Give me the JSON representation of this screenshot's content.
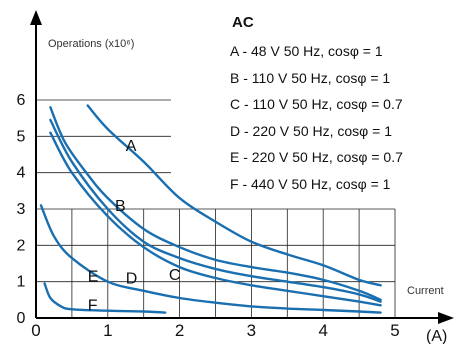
{
  "chart_data": {
    "type": "line",
    "title": "AC",
    "ylabel": "Operations (x10⁶)",
    "xlabel": "Current",
    "xunit": "(A)",
    "xlim": [
      0,
      5
    ],
    "ylim": [
      0,
      6.5
    ],
    "x_ticks": [
      "0",
      "1",
      "2",
      "3",
      "4",
      "5"
    ],
    "y_ticks": [
      "0",
      "1",
      "2",
      "3",
      "4",
      "5",
      "6"
    ],
    "grid": true,
    "legend_position": "top-right",
    "legend": [
      "A - 48 V 50 Hz, cosφ = 1",
      "B - 110 V 50 Hz, cosφ = 1",
      "C - 110 V 50 Hz, cosφ = 0.7",
      "D - 220 V 50 Hz, cosφ = 1",
      "E - 220 V 50 Hz, cosφ = 0.7",
      "F - 440 V 50 Hz, cosφ = 1"
    ],
    "series": [
      {
        "name": "A",
        "label_at": [
          1.25,
          4.6
        ],
        "points": [
          [
            0.72,
            5.85
          ],
          [
            1.0,
            5.2
          ],
          [
            1.5,
            4.3
          ],
          [
            2.0,
            3.3
          ],
          [
            2.5,
            2.65
          ],
          [
            3.0,
            2.1
          ],
          [
            3.5,
            1.75
          ],
          [
            4.0,
            1.45
          ],
          [
            4.5,
            1.05
          ],
          [
            4.8,
            0.9
          ]
        ]
      },
      {
        "name": "B",
        "label_at": [
          1.1,
          2.95
        ],
        "points": [
          [
            0.2,
            5.8
          ],
          [
            0.4,
            4.85
          ],
          [
            0.7,
            4.0
          ],
          [
            1.0,
            3.3
          ],
          [
            1.5,
            2.45
          ],
          [
            2.0,
            1.95
          ],
          [
            2.5,
            1.6
          ],
          [
            3.0,
            1.4
          ],
          [
            3.5,
            1.25
          ],
          [
            4.0,
            1.05
          ],
          [
            4.5,
            0.75
          ],
          [
            4.8,
            0.5
          ]
        ]
      },
      {
        "name": "C",
        "label_at": [
          1.85,
          1.05
        ],
        "points": [
          [
            0.2,
            5.45
          ],
          [
            0.5,
            4.3
          ],
          [
            1.0,
            3.0
          ],
          [
            1.5,
            2.1
          ],
          [
            2.0,
            1.65
          ],
          [
            2.5,
            1.35
          ],
          [
            3.0,
            1.15
          ],
          [
            3.5,
            1.0
          ],
          [
            4.0,
            0.85
          ],
          [
            4.5,
            0.65
          ],
          [
            4.8,
            0.45
          ]
        ]
      },
      {
        "name": "D",
        "label_at": [
          1.25,
          0.95
        ],
        "points": [
          [
            0.2,
            5.1
          ],
          [
            0.5,
            4.0
          ],
          [
            1.0,
            2.8
          ],
          [
            1.5,
            1.95
          ],
          [
            2.0,
            1.4
          ],
          [
            2.5,
            1.1
          ],
          [
            3.0,
            0.9
          ],
          [
            3.5,
            0.75
          ],
          [
            4.0,
            0.6
          ],
          [
            4.5,
            0.45
          ],
          [
            4.8,
            0.35
          ]
        ]
      },
      {
        "name": "E",
        "label_at": [
          0.72,
          1.0
        ],
        "points": [
          [
            0.07,
            3.1
          ],
          [
            0.25,
            2.25
          ],
          [
            0.5,
            1.65
          ],
          [
            1.0,
            1.0
          ],
          [
            1.5,
            0.75
          ],
          [
            2.0,
            0.55
          ],
          [
            2.5,
            0.42
          ],
          [
            3.0,
            0.32
          ],
          [
            3.5,
            0.26
          ],
          [
            4.0,
            0.22
          ],
          [
            4.5,
            0.18
          ],
          [
            4.8,
            0.15
          ]
        ]
      },
      {
        "name": "F",
        "label_at": [
          0.72,
          0.2
        ],
        "points": [
          [
            0.12,
            0.95
          ],
          [
            0.2,
            0.55
          ],
          [
            0.35,
            0.32
          ],
          [
            0.5,
            0.24
          ],
          [
            1.0,
            0.2
          ],
          [
            1.5,
            0.18
          ],
          [
            1.8,
            0.15
          ]
        ]
      }
    ]
  }
}
